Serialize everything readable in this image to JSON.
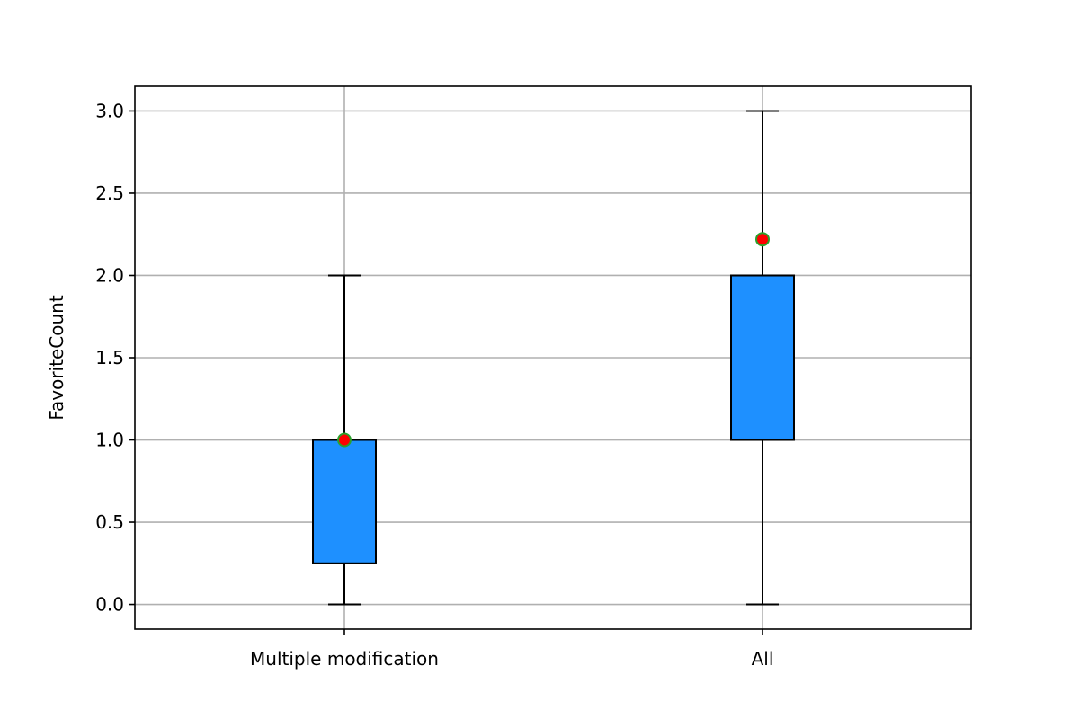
{
  "chart_data": {
    "type": "box",
    "title": "",
    "xlabel": "",
    "ylabel": "FavoriteCount",
    "ylim": [
      -0.15,
      3.15
    ],
    "yticks": [
      0.0,
      0.5,
      1.0,
      1.5,
      2.0,
      2.5,
      3.0
    ],
    "ytick_labels": [
      "0.0",
      "0.5",
      "1.0",
      "1.5",
      "2.0",
      "2.5",
      "3.0"
    ],
    "grid": true,
    "categories": [
      "Multiple modification",
      "All"
    ],
    "boxes": [
      {
        "label": "Multiple modification",
        "whislo": 0.0,
        "q1": 0.25,
        "med": 1.0,
        "q3": 1.0,
        "whishi": 2.0,
        "mean": 1.0
      },
      {
        "label": "All",
        "whislo": 0.0,
        "q1": 1.0,
        "med": 2.0,
        "q3": 2.0,
        "whishi": 3.0,
        "mean": 2.22
      }
    ],
    "colors": {
      "box_fill": "#1e90ff",
      "box_edge": "#000000",
      "whisker": "#000000",
      "mean_marker_fill": "#ff0000",
      "mean_marker_edge": "#2ca02c",
      "grid": "#b0b0b0"
    }
  }
}
